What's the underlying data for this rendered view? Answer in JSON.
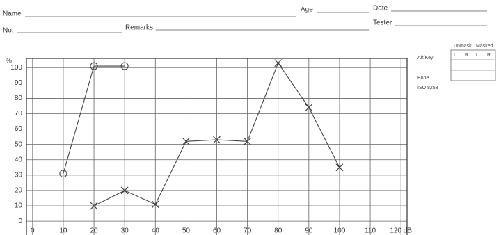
{
  "form": {
    "name": "Name",
    "age": "Age",
    "date": "Date",
    "no": "No.",
    "remarks": "Remarks",
    "tester": "Tester",
    "legend": {
      "unmask": "Unmask",
      "masked": "Masked",
      "air": "Air/Key",
      "bone": "Bone",
      "standard": "ISO 8253",
      "headers": [
        "L",
        "R",
        "L",
        "R"
      ]
    }
  },
  "chart_data": {
    "type": "line",
    "x": [
      10,
      20,
      30,
      40,
      50,
      60,
      70,
      80,
      90,
      100
    ],
    "series": [
      {
        "color": "#444444",
        "marker": "o",
        "values": [
          31,
          101,
          101,
          null,
          null,
          null,
          null,
          null,
          null,
          null
        ]
      },
      {
        "color": "#444444",
        "marker": "x",
        "values": [
          null,
          10,
          20,
          11,
          52,
          53,
          52,
          103,
          74,
          35
        ]
      }
    ],
    "ylabel": "%",
    "xlim": [
      -2,
      122
    ],
    "ylim": [
      -9,
      106
    ],
    "xticks": [
      0,
      10,
      20,
      30,
      40,
      50,
      60,
      70,
      80,
      90,
      100,
      110,
      {
        "value": 120,
        "label": "120 dB"
      }
    ],
    "yticks": [
      0,
      10,
      20,
      30,
      40,
      50,
      60,
      70,
      80,
      90,
      100
    ],
    "grid": true
  }
}
